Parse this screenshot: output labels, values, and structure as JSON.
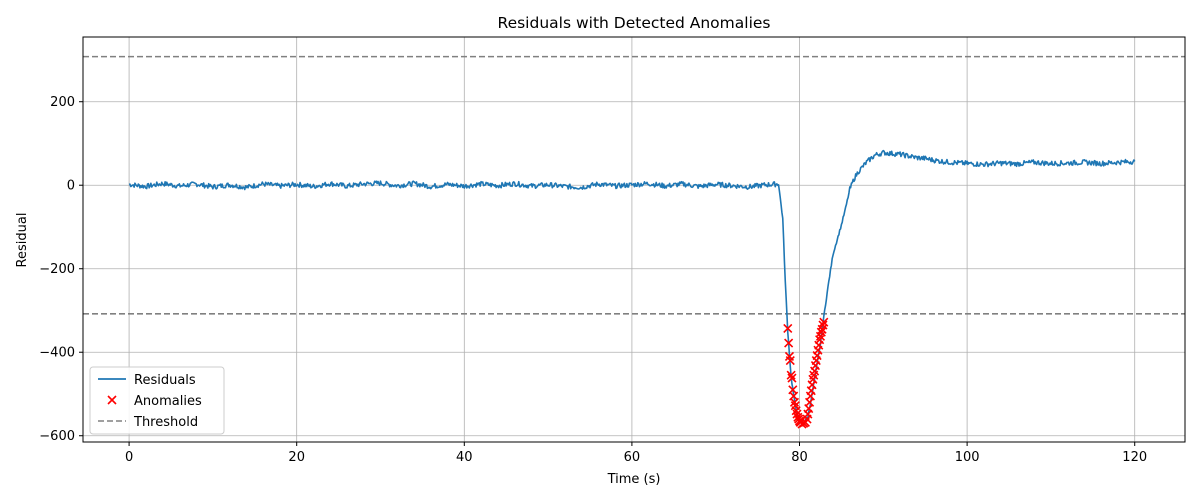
{
  "chart_data": {
    "type": "line",
    "title": "Residuals with Detected Anomalies",
    "xlabel": "Time (s)",
    "ylabel": "Residual",
    "xlim": [
      -5.5,
      126
    ],
    "ylim": [
      -615,
      355
    ],
    "xticks": [
      0,
      20,
      40,
      60,
      80,
      100,
      120
    ],
    "yticks": [
      -600,
      -400,
      -200,
      0,
      200
    ],
    "grid": true,
    "legend_position": "lower-left",
    "threshold": 308,
    "series": [
      {
        "name": "Residuals",
        "kind": "line",
        "color": "#1f77b4",
        "points": [
          [
            0,
            2
          ],
          [
            2,
            -3
          ],
          [
            4,
            4
          ],
          [
            6,
            -2
          ],
          [
            8,
            3
          ],
          [
            10,
            -4
          ],
          [
            12,
            1
          ],
          [
            14,
            -5
          ],
          [
            16,
            3
          ],
          [
            18,
            -2
          ],
          [
            20,
            2
          ],
          [
            22,
            -3
          ],
          [
            24,
            4
          ],
          [
            26,
            -2
          ],
          [
            28,
            3
          ],
          [
            30,
            5
          ],
          [
            32,
            -1
          ],
          [
            34,
            4
          ],
          [
            36,
            -3
          ],
          [
            38,
            2
          ],
          [
            40,
            -2
          ],
          [
            42,
            3
          ],
          [
            44,
            -1
          ],
          [
            46,
            4
          ],
          [
            48,
            -2
          ],
          [
            50,
            1
          ],
          [
            52,
            -3
          ],
          [
            54,
            -5
          ],
          [
            56,
            3
          ],
          [
            58,
            -2
          ],
          [
            60,
            1
          ],
          [
            62,
            4
          ],
          [
            64,
            -2
          ],
          [
            66,
            3
          ],
          [
            68,
            -3
          ],
          [
            70,
            2
          ],
          [
            72,
            -1
          ],
          [
            74,
            -4
          ],
          [
            76,
            1
          ],
          [
            77.5,
            3
          ],
          [
            78,
            -80
          ],
          [
            78.3,
            -230
          ],
          [
            78.6,
            -350
          ],
          [
            79,
            -460
          ],
          [
            79.5,
            -530
          ],
          [
            80,
            -565
          ],
          [
            80.5,
            -570
          ],
          [
            81,
            -555
          ],
          [
            81.5,
            -500
          ],
          [
            82,
            -440
          ],
          [
            82.5,
            -380
          ],
          [
            83,
            -300
          ],
          [
            83.5,
            -230
          ],
          [
            84,
            -165
          ],
          [
            84.5,
            -130
          ],
          [
            85,
            -95
          ],
          [
            85.5,
            -55
          ],
          [
            86,
            -10
          ],
          [
            86.5,
            15
          ],
          [
            87,
            32
          ],
          [
            88,
            55
          ],
          [
            89,
            72
          ],
          [
            90,
            78
          ],
          [
            91,
            76
          ],
          [
            92,
            74
          ],
          [
            93,
            70
          ],
          [
            94,
            66
          ],
          [
            95,
            64
          ],
          [
            96,
            60
          ],
          [
            97,
            57
          ],
          [
            98,
            55
          ],
          [
            100,
            52
          ],
          [
            102,
            50
          ],
          [
            104,
            53
          ],
          [
            106,
            51
          ],
          [
            108,
            55
          ],
          [
            110,
            52
          ],
          [
            112,
            53
          ],
          [
            114,
            55
          ],
          [
            116,
            52
          ],
          [
            118,
            55
          ],
          [
            120,
            57
          ]
        ]
      },
      {
        "name": "Anomalies",
        "kind": "scatter",
        "color": "#ff0000",
        "marker": "x",
        "points": [
          [
            78.6,
            -343
          ],
          [
            78.7,
            -378
          ],
          [
            78.8,
            -410
          ],
          [
            78.9,
            -420
          ],
          [
            79.0,
            -455
          ],
          [
            79.1,
            -462
          ],
          [
            79.2,
            -490
          ],
          [
            79.3,
            -505
          ],
          [
            79.4,
            -520
          ],
          [
            79.5,
            -528
          ],
          [
            79.6,
            -540
          ],
          [
            79.7,
            -548
          ],
          [
            79.8,
            -556
          ],
          [
            79.9,
            -560
          ],
          [
            80.0,
            -565
          ],
          [
            80.1,
            -568
          ],
          [
            80.3,
            -572
          ],
          [
            80.5,
            -570
          ],
          [
            80.7,
            -568
          ],
          [
            80.9,
            -560
          ],
          [
            81.0,
            -548
          ],
          [
            81.1,
            -535
          ],
          [
            81.2,
            -520
          ],
          [
            81.3,
            -505
          ],
          [
            81.4,
            -492
          ],
          [
            81.5,
            -478
          ],
          [
            81.6,
            -465
          ],
          [
            81.7,
            -455
          ],
          [
            81.8,
            -445
          ],
          [
            81.9,
            -432
          ],
          [
            82.0,
            -420
          ],
          [
            82.1,
            -408
          ],
          [
            82.2,
            -395
          ],
          [
            82.3,
            -383
          ],
          [
            82.4,
            -370
          ],
          [
            82.5,
            -362
          ],
          [
            82.6,
            -352
          ],
          [
            82.7,
            -345
          ],
          [
            82.8,
            -335
          ],
          [
            82.9,
            -328
          ]
        ]
      },
      {
        "name": "Threshold",
        "kind": "hline",
        "color": "#808080",
        "dash": true,
        "values": [
          308,
          -308
        ]
      }
    ]
  }
}
